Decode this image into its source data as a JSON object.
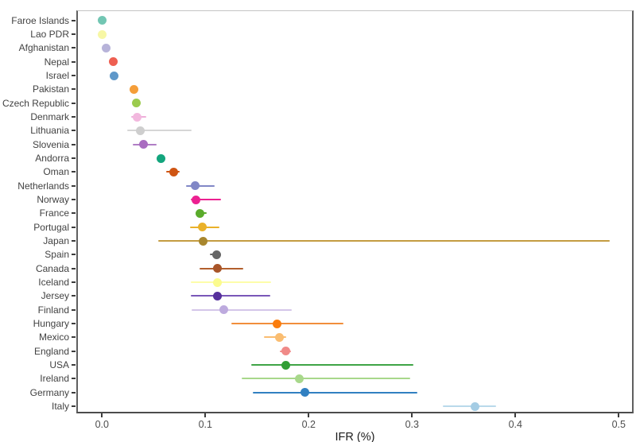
{
  "chart_data": {
    "type": "scatter",
    "title": "",
    "xlabel": "IFR (%)",
    "ylabel": "",
    "legend_position": "none",
    "grid": false,
    "xlim": [
      -0.025,
      0.515
    ],
    "x_ticks": [
      0.0,
      0.1,
      0.2,
      0.3,
      0.4,
      0.5
    ],
    "x_tick_labels": [
      "0.0",
      "0.1",
      "0.2",
      "0.3",
      "0.4",
      "0.5"
    ],
    "orientation": "horizontal-dot-plot-with-ci",
    "countries": [
      {
        "name": "Faroe Islands",
        "ifr": 0.0,
        "ci_low": null,
        "ci_high": null,
        "point_color": "#72c6b3",
        "line_color": "#72c6b3"
      },
      {
        "name": "Lao PDR",
        "ifr": 0.0,
        "ci_low": null,
        "ci_high": null,
        "point_color": "#f7f7a5",
        "line_color": "#f7f7a5"
      },
      {
        "name": "Afghanistan",
        "ifr": 0.004,
        "ci_low": null,
        "ci_high": null,
        "point_color": "#b7b3d9",
        "line_color": "#b7b3d9"
      },
      {
        "name": "Nepal",
        "ifr": 0.011,
        "ci_low": null,
        "ci_high": null,
        "point_color": "#ee5f51",
        "line_color": "#ee5f51"
      },
      {
        "name": "Israel",
        "ifr": 0.012,
        "ci_low": null,
        "ci_high": null,
        "point_color": "#5f98c9",
        "line_color": "#5f98c9"
      },
      {
        "name": "Pakistan",
        "ifr": 0.031,
        "ci_low": null,
        "ci_high": null,
        "point_color": "#f59e39",
        "line_color": "#f59e39"
      },
      {
        "name": "Czech Republic",
        "ifr": 0.033,
        "ci_low": null,
        "ci_high": null,
        "point_color": "#9bcb4d",
        "line_color": "#9bcb4d"
      },
      {
        "name": "Denmark",
        "ifr": 0.034,
        "ci_low": 0.028,
        "ci_high": 0.043,
        "point_color": "#f2b8de",
        "line_color": "#efaeda"
      },
      {
        "name": "Lithuania",
        "ifr": 0.037,
        "ci_low": 0.024,
        "ci_high": 0.087,
        "point_color": "#cecece",
        "line_color": "#d6d6d6"
      },
      {
        "name": "Slovenia",
        "ifr": 0.04,
        "ci_low": 0.03,
        "ci_high": 0.053,
        "point_color": "#a96cc0",
        "line_color": "#b07ec5"
      },
      {
        "name": "Andorra",
        "ifr": 0.057,
        "ci_low": null,
        "ci_high": null,
        "point_color": "#13a57d",
        "line_color": "#13a57d"
      },
      {
        "name": "Oman",
        "ifr": 0.069,
        "ci_low": 0.062,
        "ci_high": 0.075,
        "point_color": "#cf5513",
        "line_color": "#cf5513"
      },
      {
        "name": "Netherlands",
        "ifr": 0.09,
        "ci_low": 0.081,
        "ci_high": 0.109,
        "point_color": "#8187c6",
        "line_color": "#8187c6"
      },
      {
        "name": "Norway",
        "ifr": 0.091,
        "ci_low": 0.086,
        "ci_high": 0.115,
        "point_color": "#ec2191",
        "line_color": "#ec2191"
      },
      {
        "name": "France",
        "ifr": 0.095,
        "ci_low": 0.092,
        "ci_high": 0.101,
        "point_color": "#5aab2b",
        "line_color": "#5aab2b"
      },
      {
        "name": "Portugal",
        "ifr": 0.097,
        "ci_low": 0.085,
        "ci_high": 0.114,
        "point_color": "#eab129",
        "line_color": "#eab129"
      },
      {
        "name": "Japan",
        "ifr": 0.098,
        "ci_low": 0.054,
        "ci_high": 0.491,
        "point_color": "#a8862d",
        "line_color": "#c49c42"
      },
      {
        "name": "Spain",
        "ifr": 0.111,
        "ci_low": 0.104,
        "ci_high": 0.115,
        "point_color": "#666666",
        "line_color": "#666666"
      },
      {
        "name": "Canada",
        "ifr": 0.112,
        "ci_low": 0.094,
        "ci_high": 0.137,
        "point_color": "#a85529",
        "line_color": "#b25f2d"
      },
      {
        "name": "Iceland",
        "ifr": 0.112,
        "ci_low": 0.086,
        "ci_high": 0.164,
        "point_color": "#fbfb8e",
        "line_color": "#fdfda9"
      },
      {
        "name": "Jersey",
        "ifr": 0.112,
        "ci_low": 0.086,
        "ci_high": 0.163,
        "point_color": "#56309c",
        "line_color": "#7a57b8"
      },
      {
        "name": "Finland",
        "ifr": 0.118,
        "ci_low": 0.087,
        "ci_high": 0.184,
        "point_color": "#bdaade",
        "line_color": "#d4c6e9"
      },
      {
        "name": "Hungary",
        "ifr": 0.169,
        "ci_low": 0.125,
        "ci_high": 0.234,
        "point_color": "#fb7d0d",
        "line_color": "#f18e3b"
      },
      {
        "name": "Mexico",
        "ifr": 0.172,
        "ci_low": 0.157,
        "ci_high": 0.178,
        "point_color": "#fabd71",
        "line_color": "#fabd71"
      },
      {
        "name": "England",
        "ifr": 0.178,
        "ci_low": 0.172,
        "ci_high": 0.183,
        "point_color": "#f08a88",
        "line_color": "#f08a88"
      },
      {
        "name": "USA",
        "ifr": 0.178,
        "ci_low": 0.144,
        "ci_high": 0.301,
        "point_color": "#319e35",
        "line_color": "#3fa446"
      },
      {
        "name": "Ireland",
        "ifr": 0.191,
        "ci_low": 0.135,
        "ci_high": 0.298,
        "point_color": "#a8d88b",
        "line_color": "#a8d88b"
      },
      {
        "name": "Germany",
        "ifr": 0.196,
        "ci_low": 0.146,
        "ci_high": 0.305,
        "point_color": "#3180c1",
        "line_color": "#3180c1"
      },
      {
        "name": "Italy",
        "ifr": 0.361,
        "ci_low": 0.33,
        "ci_high": 0.381,
        "point_color": "#a4cce4",
        "line_color": "#b9d9eb"
      }
    ]
  },
  "colors": {
    "background": "#ffffff",
    "panel_border": "#5f5f5f",
    "axis_text": "#4d4d4d",
    "tick_mark": "#3c3c3c"
  }
}
